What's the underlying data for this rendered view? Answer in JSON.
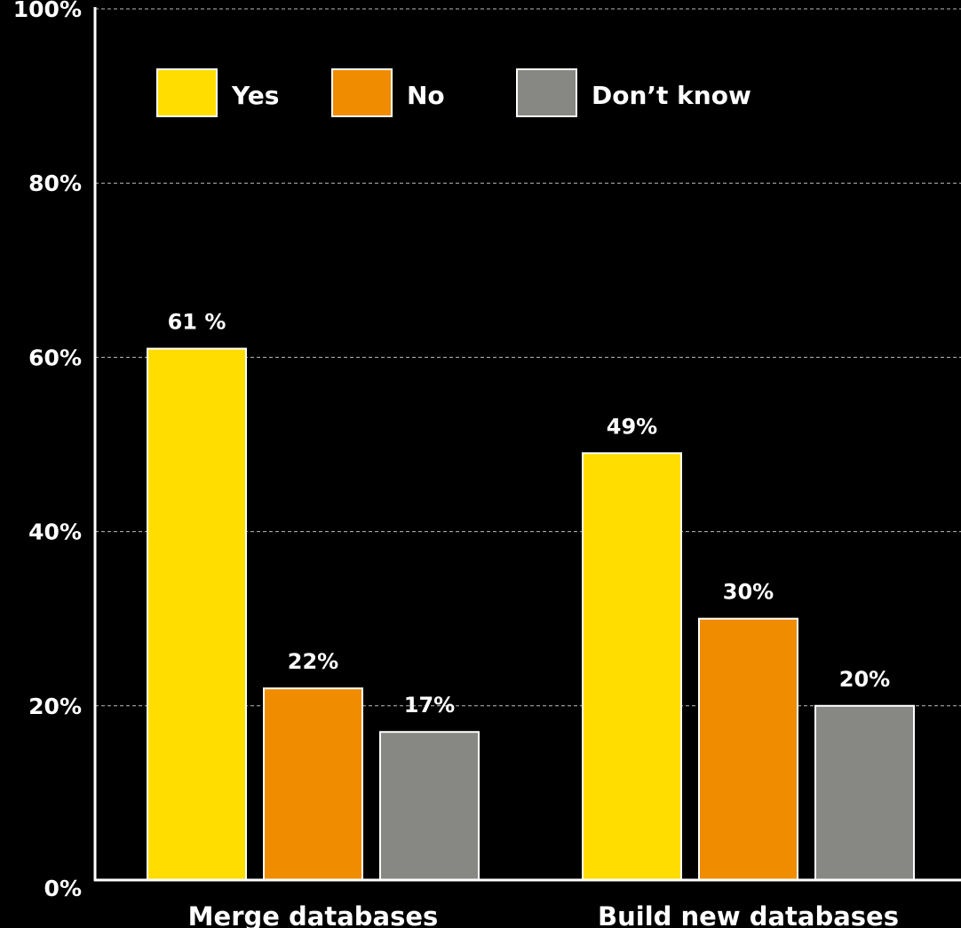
{
  "chart_data": {
    "type": "bar",
    "categories": [
      "Merge databases",
      "Build new databases"
    ],
    "series": [
      {
        "name": "Yes",
        "values": [
          61,
          49
        ],
        "labels": [
          "61 %",
          "49%"
        ],
        "color": "#FFDD00"
      },
      {
        "name": "No",
        "values": [
          22,
          30
        ],
        "labels": [
          "22%",
          "30%"
        ],
        "color": "#F08C00"
      },
      {
        "name": "Don’t know",
        "values": [
          17,
          20
        ],
        "labels": [
          "17%",
          "20%"
        ],
        "color": "#878784"
      }
    ],
    "y_ticks": [
      "0%",
      "20%",
      "40%",
      "60%",
      "80%",
      "100%"
    ],
    "y_tick_values": [
      0,
      20,
      40,
      60,
      80,
      100
    ],
    "ylim": [
      0,
      100
    ],
    "grid": true,
    "legend_position": "top",
    "title": "",
    "xlabel": "",
    "ylabel": "",
    "colors": {
      "background": "#000000",
      "text": "#FFFFFF",
      "grid": "#BBBBBB",
      "bar_border": "#FFFFFF"
    }
  }
}
